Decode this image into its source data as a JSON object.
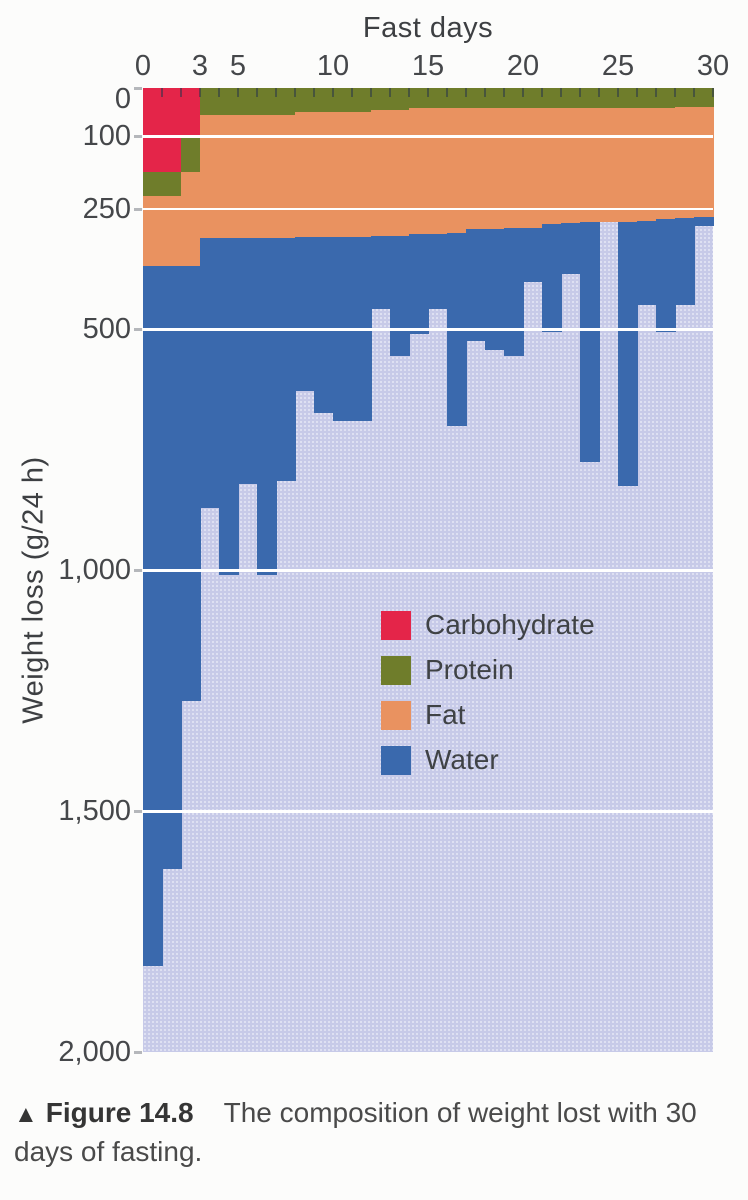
{
  "figure": {
    "caption_marker": "▲",
    "caption_label": "Figure 14.8",
    "caption_text": "The composition of weight lost with 30 days of fasting."
  },
  "chart_data": {
    "type": "bar",
    "stacked": true,
    "y_axis_inverted": true,
    "title": "Fast days",
    "xlabel": "Fast days",
    "ylabel": "Weight loss (g/24 h)",
    "xlim": [
      0,
      30
    ],
    "ylim": [
      0,
      2000
    ],
    "grid": true,
    "gridlines": [
      100,
      250,
      500,
      1000,
      1500
    ],
    "gridline_color": "#ffffff",
    "plot_background": "#c7cae8",
    "minor_x_tick_every_day": 1,
    "x_ticks": [
      {
        "value": 0,
        "label": "0"
      },
      {
        "value": 3,
        "label": "3"
      },
      {
        "value": 5,
        "label": "5"
      },
      {
        "value": 10,
        "label": "10"
      },
      {
        "value": 15,
        "label": "15"
      },
      {
        "value": 20,
        "label": "20"
      },
      {
        "value": 25,
        "label": "25"
      },
      {
        "value": 30,
        "label": "30"
      }
    ],
    "y_ticks": [
      {
        "value": 0,
        "label": "0"
      },
      {
        "value": 100,
        "label": "100"
      },
      {
        "value": 250,
        "label": "250"
      },
      {
        "value": 500,
        "label": "500"
      },
      {
        "value": 1000,
        "label": "1,000"
      },
      {
        "value": 1500,
        "label": "1,500"
      },
      {
        "value": 2000,
        "label": "2,000"
      }
    ],
    "categories": [
      1,
      2,
      3,
      4,
      5,
      6,
      7,
      8,
      9,
      10,
      11,
      12,
      13,
      14,
      15,
      16,
      17,
      18,
      19,
      20,
      21,
      22,
      23,
      24,
      25,
      26,
      27,
      28,
      29,
      30
    ],
    "series": [
      {
        "name": "Carbohydrate",
        "color": "#e42549",
        "values": [
          175,
          175,
          100,
          0,
          0,
          0,
          0,
          0,
          0,
          0,
          0,
          0,
          0,
          0,
          0,
          0,
          0,
          0,
          0,
          0,
          0,
          0,
          0,
          0,
          0,
          0,
          0,
          0,
          0,
          0
        ]
      },
      {
        "name": "Protein",
        "color": "#6f7d2b",
        "values": [
          50,
          50,
          75,
          55,
          55,
          55,
          55,
          55,
          50,
          50,
          50,
          50,
          45,
          45,
          42,
          42,
          42,
          42,
          42,
          42,
          42,
          42,
          42,
          42,
          42,
          42,
          42,
          42,
          40,
          40
        ]
      },
      {
        "name": "Fat",
        "color": "#e99260",
        "values": [
          145,
          145,
          195,
          257,
          257,
          257,
          257,
          257,
          260,
          260,
          260,
          260,
          263,
          263,
          260,
          260,
          258,
          250,
          250,
          249,
          248,
          241,
          238,
          236,
          235,
          235,
          234,
          230,
          230,
          228
        ]
      },
      {
        "name": "Water",
        "color": "#3a69ad",
        "values": [
          1450,
          1250,
          900,
          558,
          698,
          508,
          698,
          503,
          317,
          363,
          380,
          380,
          150,
          248,
          208,
          156,
          400,
          231,
          250,
          265,
          112,
          223,
          105,
          497,
          0,
          548,
          174,
          233,
          180,
          17
        ]
      }
    ],
    "legend": {
      "position": "inside-plot-center",
      "entries": [
        "Carbohydrate",
        "Protein",
        "Fat",
        "Water"
      ]
    }
  }
}
